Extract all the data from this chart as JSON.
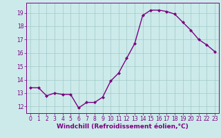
{
  "x": [
    0,
    1,
    2,
    3,
    4,
    5,
    6,
    7,
    8,
    9,
    10,
    11,
    12,
    13,
    14,
    15,
    16,
    17,
    18,
    19,
    20,
    21,
    22,
    23
  ],
  "y": [
    13.4,
    13.4,
    12.8,
    13.0,
    12.9,
    12.9,
    11.9,
    12.3,
    12.3,
    12.7,
    13.9,
    14.5,
    15.6,
    16.7,
    18.8,
    19.2,
    19.2,
    19.1,
    18.9,
    18.3,
    17.7,
    17.0,
    16.6,
    16.1
  ],
  "line_color": "#7b0080",
  "marker": "D",
  "marker_size": 2.0,
  "bg_color": "#cceaea",
  "grid_color": "#a0c8c8",
  "xlabel": "Windchill (Refroidissement éolien,°C)",
  "xlim": [
    -0.5,
    23.5
  ],
  "ylim": [
    11.5,
    19.75
  ],
  "yticks": [
    12,
    13,
    14,
    15,
    16,
    17,
    18,
    19
  ],
  "xticks": [
    0,
    1,
    2,
    3,
    4,
    5,
    6,
    7,
    8,
    9,
    10,
    11,
    12,
    13,
    14,
    15,
    16,
    17,
    18,
    19,
    20,
    21,
    22,
    23
  ],
  "tick_color": "#7b0080",
  "tick_fontsize": 5.5,
  "xlabel_fontsize": 6.5,
  "line_width": 1.0
}
